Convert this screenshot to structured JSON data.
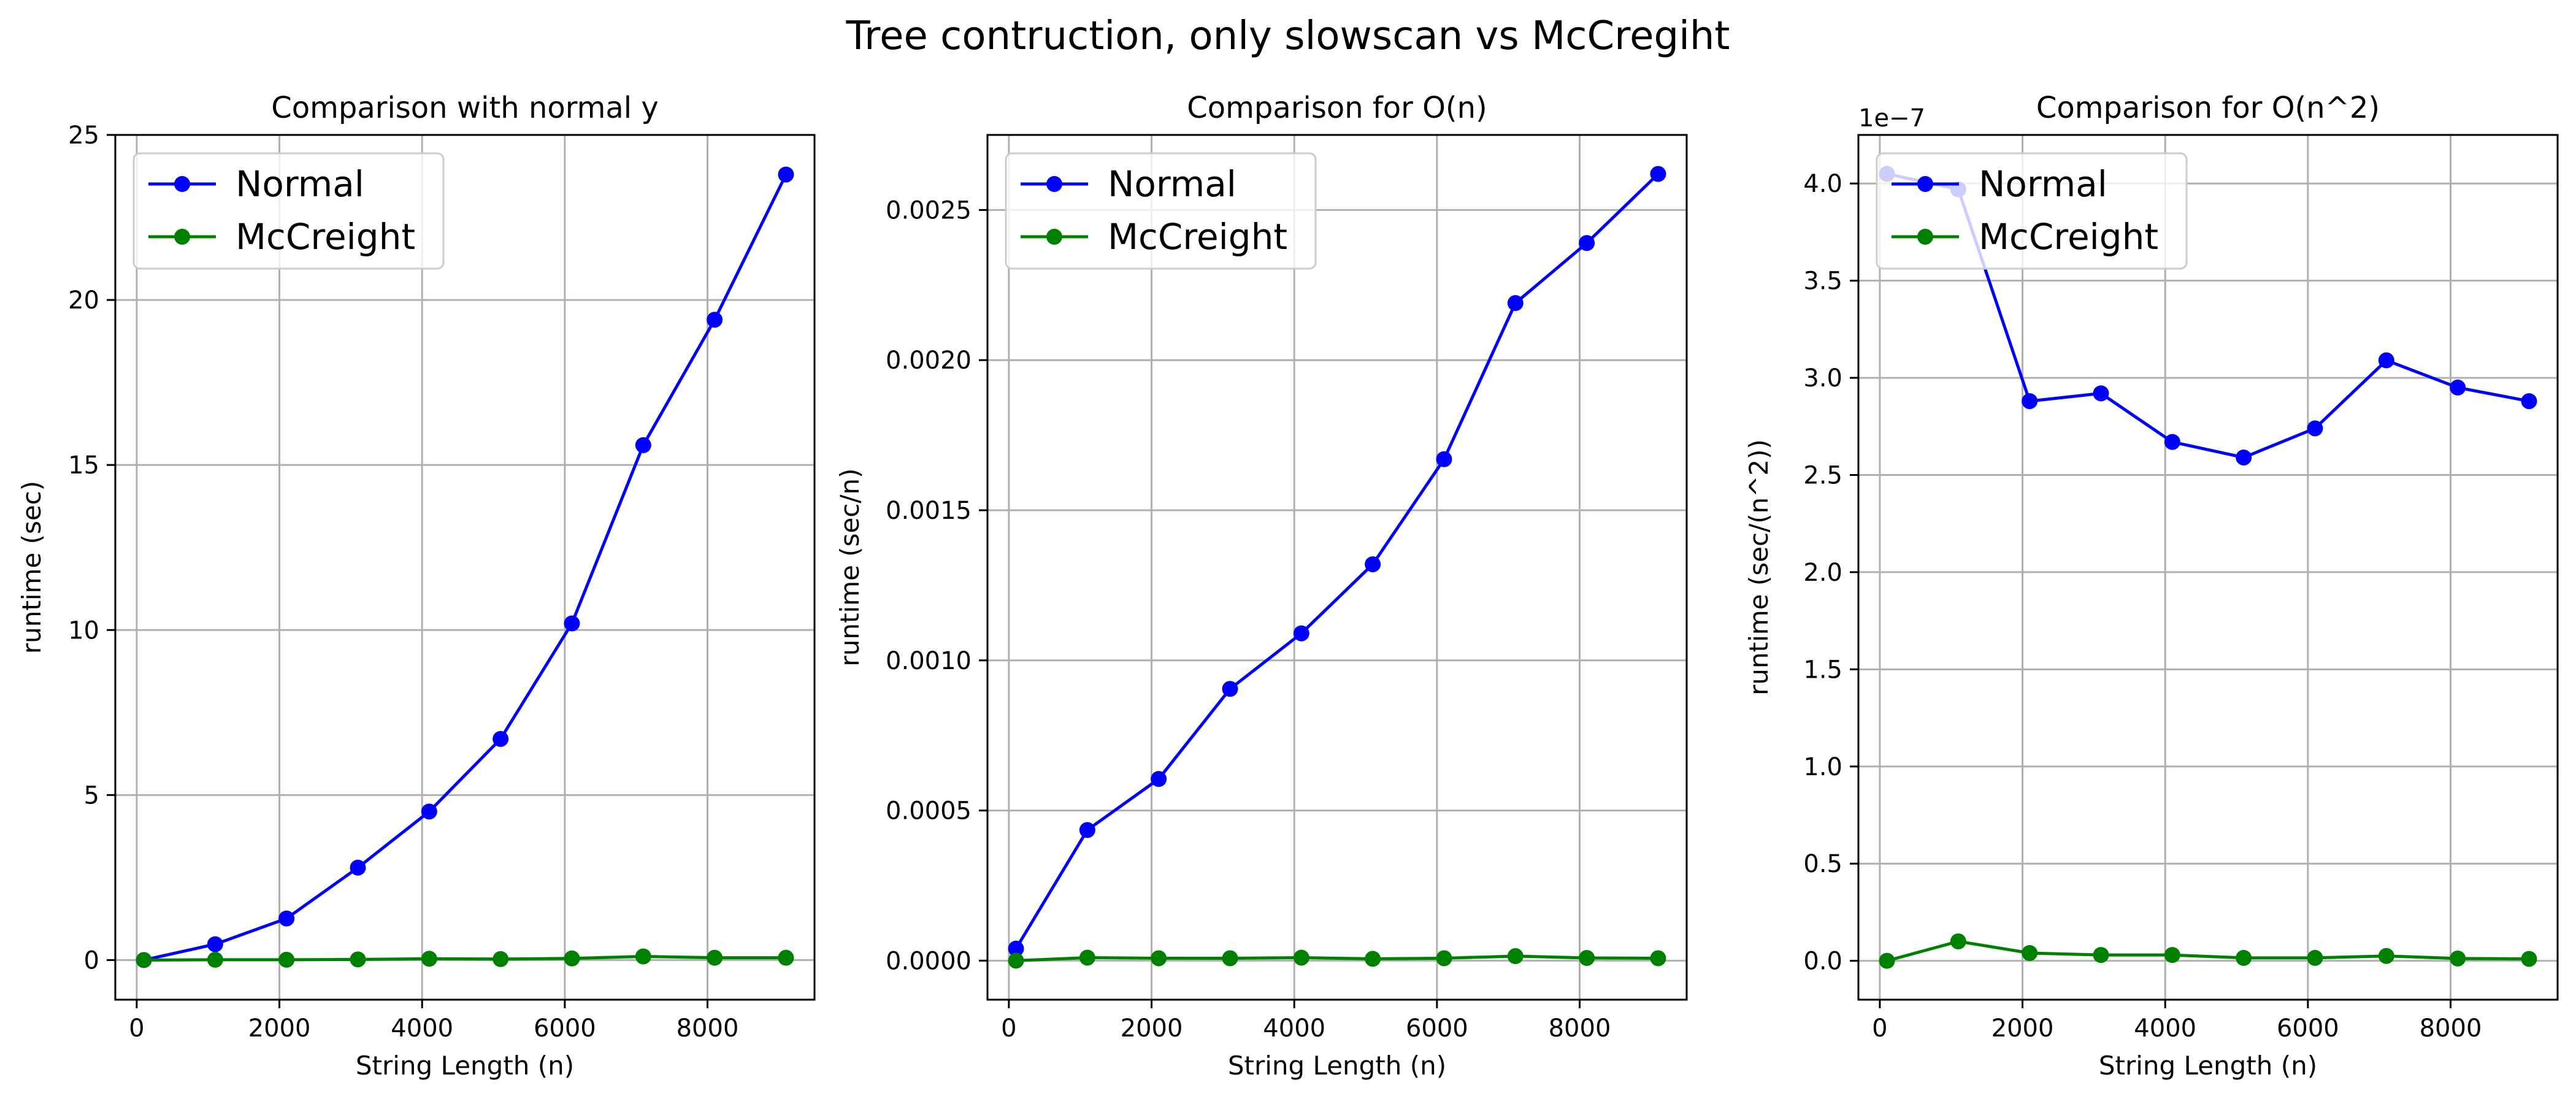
{
  "figure": {
    "title": "Tree contruction, only slowscan vs McCregiht"
  },
  "colors": {
    "normal": "#0000ff",
    "mccreight": "#008000",
    "grid": "#b0b0b0",
    "axes": "#000000"
  },
  "chart_data": [
    {
      "type": "line",
      "title": "Comparison with normal y",
      "xlabel": "String Length (n)",
      "ylabel": "runtime (sec)",
      "xlim": [
        -300,
        9500
      ],
      "ylim": [
        -1.2,
        25
      ],
      "xticks": [
        0,
        2000,
        4000,
        6000,
        8000
      ],
      "xtick_labels": [
        "0",
        "2000",
        "4000",
        "6000",
        "8000"
      ],
      "yticks": [
        0,
        5,
        10,
        15,
        20,
        25
      ],
      "ytick_labels": [
        "0",
        "5",
        "10",
        "15",
        "20",
        "25"
      ],
      "grid": true,
      "legend_position": "upper left",
      "x": [
        100,
        1100,
        2100,
        3100,
        4100,
        5100,
        6100,
        7100,
        8100,
        9100
      ],
      "series": [
        {
          "name": "Normal",
          "color": "#0000ff",
          "marker": "circle",
          "values": [
            0.0,
            0.48,
            1.26,
            2.8,
            4.5,
            6.7,
            10.2,
            15.6,
            19.4,
            23.8
          ]
        },
        {
          "name": "McCreight",
          "color": "#008000",
          "marker": "circle",
          "values": [
            0.0,
            0.01,
            0.01,
            0.02,
            0.04,
            0.03,
            0.05,
            0.11,
            0.07,
            0.07
          ]
        }
      ]
    },
    {
      "type": "line",
      "title": "Comparison for O(n)",
      "xlabel": "String Length (n)",
      "ylabel": "runtime (sec/n)",
      "xlim": [
        -300,
        9500
      ],
      "ylim": [
        -0.00013,
        0.00275
      ],
      "xticks": [
        0,
        2000,
        4000,
        6000,
        8000
      ],
      "xtick_labels": [
        "0",
        "2000",
        "4000",
        "6000",
        "8000"
      ],
      "yticks": [
        0,
        0.0005,
        0.001,
        0.0015,
        0.002,
        0.0025
      ],
      "ytick_labels": [
        "0.0000",
        "0.0005",
        "0.0010",
        "0.0015",
        "0.0020",
        "0.0025"
      ],
      "grid": true,
      "legend_position": "upper left",
      "x": [
        100,
        1100,
        2100,
        3100,
        4100,
        5100,
        6100,
        7100,
        8100,
        9100
      ],
      "series": [
        {
          "name": "Normal",
          "color": "#0000ff",
          "marker": "circle",
          "values": [
            4e-05,
            0.000435,
            0.000605,
            0.000905,
            0.00109,
            0.00132,
            0.00167,
            0.00219,
            0.00239,
            0.00262
          ]
        },
        {
          "name": "McCreight",
          "color": "#008000",
          "marker": "circle",
          "values": [
            0.0,
            1e-05,
            8e-06,
            8e-06,
            1e-05,
            6e-06,
            8e-06,
            1.5e-05,
            9e-06,
            8e-06
          ]
        }
      ]
    },
    {
      "type": "line",
      "title": "Comparison for O(n^2)",
      "xlabel": "String Length (n)",
      "ylabel": "runtime (sec/(n^2))",
      "y_offset_label": "1e−7",
      "xlim": [
        -300,
        9500
      ],
      "ylim": [
        -2e-08,
        4.25e-07
      ],
      "xticks": [
        0,
        2000,
        4000,
        6000,
        8000
      ],
      "xtick_labels": [
        "0",
        "2000",
        "4000",
        "6000",
        "8000"
      ],
      "yticks": [
        0,
        5e-08,
        1e-07,
        1.5e-07,
        2e-07,
        2.5e-07,
        3e-07,
        3.5e-07,
        4e-07
      ],
      "ytick_labels": [
        "0.0",
        "0.5",
        "1.0",
        "1.5",
        "2.0",
        "2.5",
        "3.0",
        "3.5",
        "4.0"
      ],
      "grid": true,
      "legend_position": "upper left",
      "x": [
        100,
        1100,
        2100,
        3100,
        4100,
        5100,
        6100,
        7100,
        8100,
        9100
      ],
      "series": [
        {
          "name": "Normal",
          "color": "#0000ff",
          "marker": "circle",
          "values": [
            4.05e-07,
            3.97e-07,
            2.88e-07,
            2.92e-07,
            2.67e-07,
            2.59e-07,
            2.74e-07,
            3.09e-07,
            2.95e-07,
            2.88e-07
          ]
        },
        {
          "name": "McCreight",
          "color": "#008000",
          "marker": "circle",
          "values": [
            0.0,
            1e-08,
            4e-09,
            3e-09,
            3e-09,
            1.5e-09,
            1.5e-09,
            2.5e-09,
            1.2e-09,
            1e-09
          ]
        }
      ]
    }
  ]
}
